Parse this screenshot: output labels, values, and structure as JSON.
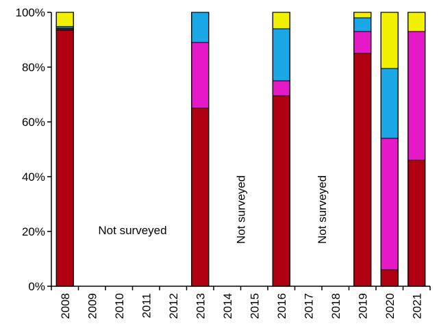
{
  "chart_data": {
    "type": "bar",
    "stacked": true,
    "categories": [
      "2008",
      "2009",
      "2010",
      "2011",
      "2012",
      "2013",
      "2014",
      "2015",
      "2016",
      "2017",
      "2018",
      "2019",
      "2020",
      "2021"
    ],
    "ylim": [
      0,
      100
    ],
    "yticks": [
      "0%",
      "20%",
      "40%",
      "60%",
      "80%",
      "100%"
    ],
    "grid": false,
    "legend": "none",
    "series": [
      {
        "color": "#b10012",
        "values": [
          93.5,
          null,
          null,
          null,
          null,
          65,
          null,
          null,
          69.5,
          null,
          null,
          85,
          6,
          46
        ]
      },
      {
        "color": "#2b2b2b",
        "values": [
          0.7,
          null,
          null,
          null,
          null,
          0,
          null,
          null,
          0,
          null,
          null,
          0,
          0,
          0
        ]
      },
      {
        "color": "#e619c8",
        "values": [
          0,
          null,
          null,
          null,
          null,
          24,
          null,
          null,
          5.5,
          null,
          null,
          8,
          48,
          47
        ]
      },
      {
        "color": "#1aa7e6",
        "values": [
          0.6,
          null,
          null,
          null,
          null,
          11,
          null,
          null,
          19,
          null,
          null,
          5,
          25.5,
          0
        ]
      },
      {
        "color": "#f0f000",
        "values": [
          5.2,
          null,
          null,
          null,
          null,
          0,
          null,
          null,
          6,
          null,
          null,
          2,
          20.5,
          7
        ]
      }
    ],
    "annotations": [
      {
        "text": "Not surveyed",
        "span": [
          "2009",
          "2012"
        ],
        "orientation": "horizontal"
      },
      {
        "text": "Not surveyed",
        "span": [
          "2014",
          "2015"
        ],
        "orientation": "vertical"
      },
      {
        "text": "Not surveyed",
        "span": [
          "2017",
          "2018"
        ],
        "orientation": "vertical"
      }
    ]
  }
}
